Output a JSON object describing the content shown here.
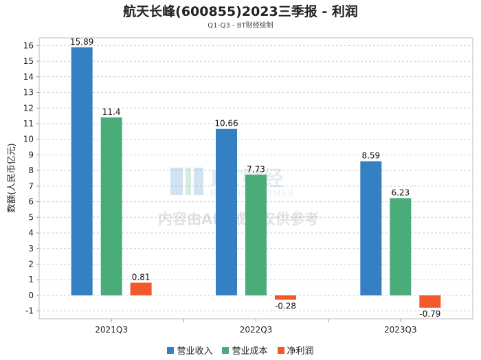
{
  "chart_data": {
    "type": "bar",
    "title": "航天长峰(600855)2023三季报 - 利润",
    "subtitle": "Q1-Q3 - BT财经绘制",
    "ylabel": "数额(人民币亿元)",
    "xlabel": "",
    "ylim": [
      -1.5,
      16.5
    ],
    "yticks": [
      -1,
      0,
      1,
      2,
      3,
      4,
      5,
      6,
      7,
      8,
      9,
      10,
      11,
      12,
      13,
      14,
      15,
      16
    ],
    "categories": [
      "2021Q3",
      "2022Q3",
      "2023Q3"
    ],
    "series": [
      {
        "name": "营业收入",
        "color": "#3480c2",
        "values": [
          15.89,
          10.66,
          8.59
        ]
      },
      {
        "name": "营业成本",
        "color": "#4aac79",
        "values": [
          11.4,
          7.73,
          6.23
        ]
      },
      {
        "name": "净利润",
        "color": "#f1582c",
        "values": [
          0.81,
          -0.28,
          -0.79
        ]
      }
    ],
    "grid": true,
    "legend_position": "bottom"
  },
  "watermark": {
    "logo": "BT财经",
    "logo_sub": "BUSINESS TIMES",
    "notice": "内容由AI生成，仅供参考"
  }
}
